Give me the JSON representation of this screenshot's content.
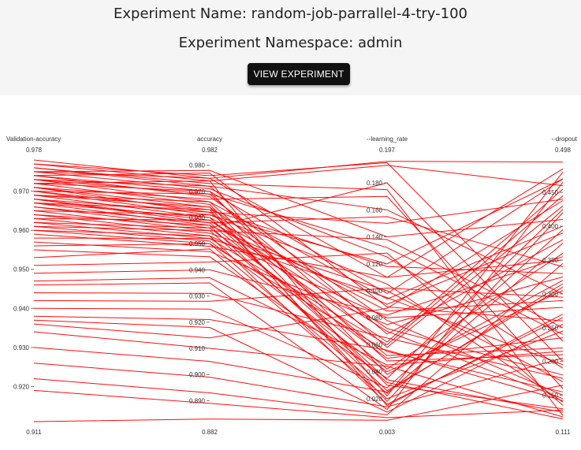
{
  "header": {
    "name_label": "Experiment Name: random-job-parrallel-4-try-100",
    "namespace_label": "Experiment Namespace: admin",
    "view_button": "VIEW EXPERIMENT"
  },
  "colors": {
    "line": "#ff0000",
    "header_bg": "#f5f5f5",
    "button_bg": "#111111"
  },
  "chart_data": {
    "type": "parallel_coordinates",
    "title": "",
    "axes": [
      {
        "name": "Validation-accuracy",
        "range": [
          0.911,
          0.978
        ],
        "min_label": "0.911",
        "max_label": "0.978",
        "ticks": [
          0.92,
          0.93,
          0.94,
          0.95,
          0.96,
          0.97
        ],
        "tick_labels": [
          "0.920",
          "0.930",
          "0.940",
          "0.950",
          "0.960",
          "0.970"
        ]
      },
      {
        "name": "accuracy",
        "range": [
          0.882,
          0.982
        ],
        "min_label": "0.882",
        "max_label": "0.982",
        "ticks": [
          0.89,
          0.9,
          0.91,
          0.92,
          0.93,
          0.94,
          0.95,
          0.96,
          0.97,
          0.98
        ],
        "tick_labels": [
          "0.890",
          "0.900",
          "0.910",
          "0.920",
          "0.930",
          "0.940",
          "0.950",
          "0.960",
          "0.970",
          "0.980"
        ]
      },
      {
        "name": "--learning_rate",
        "range": [
          0.003,
          0.197
        ],
        "min_label": "0.003",
        "max_label": "0.197",
        "ticks": [
          0.02,
          0.04,
          0.06,
          0.08,
          0.1,
          0.12,
          0.14,
          0.16,
          0.18
        ],
        "tick_labels": [
          "0.020",
          "0.040",
          "0.060",
          "0.080",
          "0.100",
          "0.120",
          "0.140",
          "0.160",
          "0.180"
        ]
      },
      {
        "name": "--dropout",
        "range": [
          0.111,
          0.498
        ],
        "min_label": "0.111",
        "max_label": "0.498",
        "ticks": [
          0.15,
          0.2,
          0.25,
          0.3,
          0.35,
          0.4,
          0.45
        ],
        "tick_labels": [
          "0.150",
          "0.200",
          "0.250",
          "0.300",
          "0.350",
          "0.400",
          "0.450"
        ]
      }
    ],
    "trials": [
      [
        0.978,
        0.975,
        0.196,
        0.495
      ],
      [
        0.977,
        0.976,
        0.195,
        0.23
      ],
      [
        0.977,
        0.974,
        0.193,
        0.46
      ],
      [
        0.976,
        0.973,
        0.175,
        0.12
      ],
      [
        0.976,
        0.972,
        0.16,
        0.3
      ],
      [
        0.975,
        0.978,
        0.14,
        0.41
      ],
      [
        0.975,
        0.971,
        0.125,
        0.19
      ],
      [
        0.975,
        0.975,
        0.11,
        0.35
      ],
      [
        0.974,
        0.97,
        0.098,
        0.47
      ],
      [
        0.974,
        0.977,
        0.088,
        0.26
      ],
      [
        0.974,
        0.968,
        0.078,
        0.15
      ],
      [
        0.973,
        0.972,
        0.068,
        0.38
      ],
      [
        0.973,
        0.969,
        0.058,
        0.43
      ],
      [
        0.973,
        0.966,
        0.048,
        0.21
      ],
      [
        0.972,
        0.97,
        0.038,
        0.32
      ],
      [
        0.972,
        0.965,
        0.03,
        0.13
      ],
      [
        0.972,
        0.974,
        0.022,
        0.48
      ],
      [
        0.971,
        0.964,
        0.015,
        0.27
      ],
      [
        0.971,
        0.967,
        0.17,
        0.16
      ],
      [
        0.971,
        0.962,
        0.15,
        0.44
      ],
      [
        0.97,
        0.969,
        0.132,
        0.24
      ],
      [
        0.97,
        0.963,
        0.118,
        0.33
      ],
      [
        0.97,
        0.961,
        0.105,
        0.14
      ],
      [
        0.969,
        0.966,
        0.094,
        0.4
      ],
      [
        0.969,
        0.96,
        0.085,
        0.29
      ],
      [
        0.969,
        0.964,
        0.072,
        0.18
      ],
      [
        0.968,
        0.959,
        0.062,
        0.455
      ],
      [
        0.968,
        0.962,
        0.052,
        0.22
      ],
      [
        0.968,
        0.958,
        0.042,
        0.36
      ],
      [
        0.967,
        0.96,
        0.034,
        0.125
      ],
      [
        0.967,
        0.957,
        0.026,
        0.31
      ],
      [
        0.967,
        0.963,
        0.018,
        0.42
      ],
      [
        0.966,
        0.956,
        0.18,
        0.2
      ],
      [
        0.966,
        0.958,
        0.155,
        0.34
      ],
      [
        0.965,
        0.955,
        0.138,
        0.25
      ],
      [
        0.965,
        0.961,
        0.12,
        0.47
      ],
      [
        0.964,
        0.954,
        0.1,
        0.17
      ],
      [
        0.964,
        0.957,
        0.09,
        0.39
      ],
      [
        0.963,
        0.953,
        0.08,
        0.28
      ],
      [
        0.963,
        0.959,
        0.07,
        0.145
      ],
      [
        0.962,
        0.952,
        0.06,
        0.445
      ],
      [
        0.962,
        0.956,
        0.05,
        0.235
      ],
      [
        0.961,
        0.951,
        0.04,
        0.305
      ],
      [
        0.961,
        0.955,
        0.032,
        0.115
      ],
      [
        0.96,
        0.95,
        0.024,
        0.375
      ],
      [
        0.96,
        0.953,
        0.016,
        0.265
      ],
      [
        0.959,
        0.949,
        0.11,
        0.485
      ],
      [
        0.958,
        0.952,
        0.095,
        0.195
      ],
      [
        0.957,
        0.947,
        0.075,
        0.325
      ],
      [
        0.956,
        0.95,
        0.055,
        0.155
      ],
      [
        0.955,
        0.945,
        0.035,
        0.425
      ],
      [
        0.953,
        0.948,
        0.02,
        0.245
      ],
      [
        0.951,
        0.943,
        0.128,
        0.135
      ],
      [
        0.949,
        0.94,
        0.082,
        0.355
      ],
      [
        0.947,
        0.937,
        0.045,
        0.215
      ],
      [
        0.946,
        0.935,
        0.012,
        0.465
      ],
      [
        0.944,
        0.931,
        0.065,
        0.175
      ],
      [
        0.942,
        0.928,
        0.102,
        0.295
      ],
      [
        0.94,
        0.925,
        0.028,
        0.395
      ],
      [
        0.938,
        0.921,
        0.056,
        0.142
      ],
      [
        0.937,
        0.918,
        0.01,
        0.255
      ],
      [
        0.936,
        0.914,
        0.087,
        0.438
      ],
      [
        0.934,
        0.91,
        0.044,
        0.118
      ],
      [
        0.93,
        0.905,
        0.025,
        0.315
      ],
      [
        0.926,
        0.899,
        0.014,
        0.205
      ],
      [
        0.922,
        0.893,
        0.008,
        0.345
      ],
      [
        0.919,
        0.889,
        0.006,
        0.128
      ],
      [
        0.911,
        0.883,
        0.004,
        0.165
      ]
    ]
  }
}
